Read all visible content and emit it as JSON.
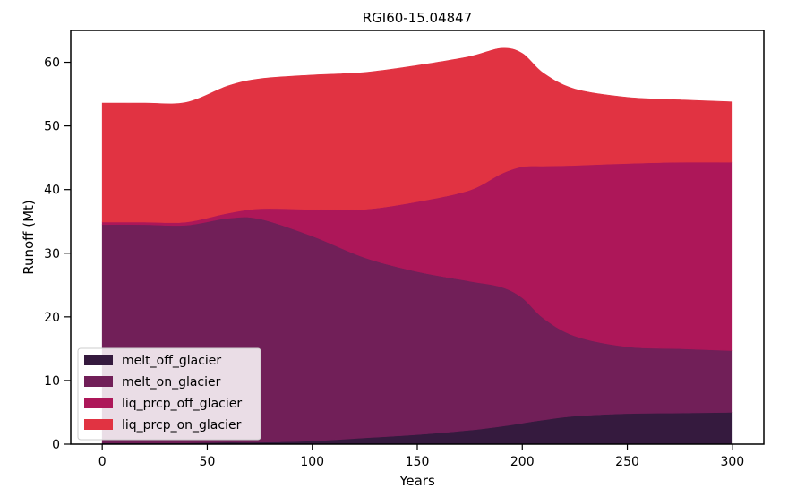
{
  "chart_data": {
    "type": "area",
    "stacked": true,
    "title": "RGI60-15.04847",
    "xlabel": "Years",
    "ylabel": "Runoff (Mt)",
    "xlim": [
      -15,
      315
    ],
    "ylim": [
      0,
      65
    ],
    "xticks": [
      0,
      50,
      100,
      150,
      200,
      250,
      300
    ],
    "yticks": [
      0,
      10,
      20,
      30,
      40,
      50,
      60
    ],
    "grid": false,
    "legend_position": "lower-left",
    "x": [
      0,
      20,
      40,
      60,
      75,
      100,
      125,
      150,
      175,
      190,
      200,
      210,
      225,
      250,
      275,
      300
    ],
    "series": [
      {
        "name": "melt_off_glacier",
        "color": "#351a3e",
        "values": [
          0.2,
          0.2,
          0.2,
          0.3,
          0.3,
          0.5,
          1.0,
          1.5,
          2.2,
          2.8,
          3.3,
          3.8,
          4.4,
          4.8,
          4.9,
          5.0
        ]
      },
      {
        "name": "melt_on_glacier",
        "color": "#711f58",
        "values": [
          34.3,
          34.3,
          34.2,
          35.2,
          35.1,
          32.2,
          28.3,
          25.6,
          23.4,
          21.9,
          19.7,
          16.0,
          12.6,
          10.5,
          10.1,
          9.7
        ]
      },
      {
        "name": "liq_prcp_off_glacier",
        "color": "#ad1759",
        "values": [
          0.4,
          0.4,
          0.5,
          0.8,
          1.6,
          4.2,
          7.6,
          11.0,
          14.3,
          17.8,
          20.6,
          23.9,
          26.8,
          28.8,
          29.3,
          29.6
        ]
      },
      {
        "name": "liq_prcp_on_glacier",
        "color": "#e13342",
        "values": [
          18.7,
          18.7,
          18.8,
          20.0,
          20.4,
          21.1,
          21.5,
          21.4,
          21.0,
          19.7,
          17.8,
          14.6,
          12.0,
          10.4,
          9.8,
          9.5
        ]
      }
    ]
  }
}
